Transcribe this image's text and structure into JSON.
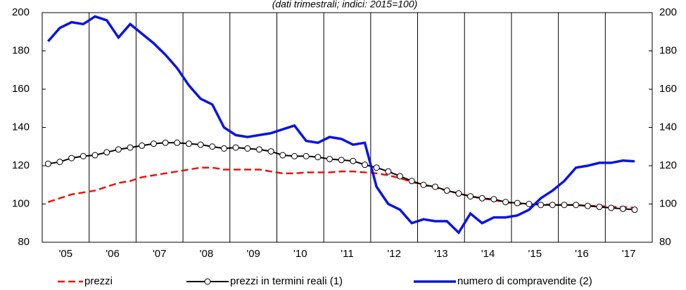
{
  "chart_data": {
    "type": "line",
    "subtitle": "(dati trimestrali; indici: 2015=100)",
    "x_labels": [
      "'05",
      "'06",
      "'07",
      "'08",
      "'09",
      "'10",
      "'11",
      "'12",
      "'13",
      "'14",
      "'15",
      "'16",
      "'17"
    ],
    "ylim": [
      80,
      200
    ],
    "yticks": [
      80,
      100,
      120,
      140,
      160,
      180,
      200
    ],
    "y2lim": [
      80,
      200
    ],
    "y2ticks": [
      80,
      100,
      120,
      140,
      160,
      180,
      200
    ],
    "series": [
      {
        "name": "prezzi",
        "color": "#e8140f",
        "style": "dashed",
        "values": [
          101,
          103,
          105,
          106,
          107,
          109,
          111,
          112,
          114,
          115,
          116,
          117,
          118,
          119,
          119,
          118,
          118,
          118,
          118,
          117,
          116,
          116,
          116.5,
          116.5,
          116.5,
          117,
          117,
          116.5,
          116,
          115,
          113.5,
          111.5,
          110,
          108.5,
          107,
          105.5,
          104,
          103,
          102,
          101,
          100,
          100,
          100,
          99.5,
          99.5,
          99.5,
          99,
          99,
          98.5,
          98.5,
          98
        ]
      },
      {
        "name": "prezzi in termini reali (1)",
        "color": "#000000",
        "style": "markers",
        "values": [
          121,
          122,
          124,
          125,
          125.5,
          127,
          128.5,
          129.5,
          130.5,
          131.5,
          132,
          132,
          131.5,
          131,
          130,
          129,
          129.5,
          129,
          128.5,
          127.5,
          125.5,
          125,
          125,
          124.5,
          123.5,
          123,
          122.5,
          120.5,
          119,
          117,
          114.5,
          112,
          110,
          109,
          107,
          105.5,
          104,
          103,
          102.5,
          101,
          100.5,
          100,
          99.5,
          99.5,
          99.5,
          99.5,
          99,
          98.5,
          98,
          97.5,
          97
        ]
      },
      {
        "name": "numero di compravendite (2)",
        "color": "#0a14e6",
        "style": "thick",
        "values": [
          185,
          192,
          195,
          194,
          198,
          196,
          187,
          194,
          189,
          184,
          178,
          171,
          162,
          155,
          152,
          140,
          136,
          135,
          136,
          137,
          139,
          141,
          133,
          132,
          135,
          134,
          131,
          132,
          109,
          100,
          97,
          90,
          92,
          91,
          91,
          85,
          95,
          90,
          93,
          93,
          94,
          97,
          103,
          107,
          112,
          119,
          120,
          121.5,
          121.5,
          122.7,
          122.3
        ]
      }
    ]
  }
}
